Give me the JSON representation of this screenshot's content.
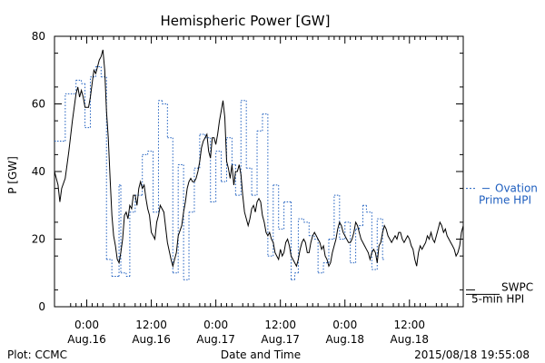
{
  "chart_data": {
    "type": "line",
    "title": "Hemispheric Power [GW]",
    "ylabel": "P [GW]",
    "xlabel": "Date and Time",
    "ylim": [
      0,
      80
    ],
    "xlim": [
      -6,
      222
    ],
    "y_ticks": [
      0,
      20,
      40,
      60,
      80
    ],
    "x_ticks": [
      {
        "t": 12,
        "time": "0:00",
        "date": "Aug.16"
      },
      {
        "t": 48,
        "time": "12:00",
        "date": "Aug.16"
      },
      {
        "t": 84,
        "time": "0:00",
        "date": "Aug.17"
      },
      {
        "t": 120,
        "time": "12:00",
        "date": "Aug.17"
      },
      {
        "t": 156,
        "time": "0:00",
        "date": "Aug.18"
      },
      {
        "t": 192,
        "time": "12:00",
        "date": "Aug.18"
      }
    ],
    "series": [
      {
        "name": "Ovation Prime HPI",
        "color": "#1f5fbf",
        "style": "dotted-step",
        "points": [
          [
            -6,
            49
          ],
          [
            0,
            63
          ],
          [
            6,
            67
          ],
          [
            9,
            66
          ],
          [
            11,
            53
          ],
          [
            14,
            68
          ],
          [
            17,
            71
          ],
          [
            20,
            68
          ],
          [
            23,
            14
          ],
          [
            26,
            9
          ],
          [
            30,
            36
          ],
          [
            31,
            10
          ],
          [
            34,
            9
          ],
          [
            36,
            28
          ],
          [
            39,
            33
          ],
          [
            43,
            45
          ],
          [
            46,
            46
          ],
          [
            49,
            28
          ],
          [
            52,
            61
          ],
          [
            54,
            60
          ],
          [
            57,
            50
          ],
          [
            60,
            10
          ],
          [
            63,
            42
          ],
          [
            66,
            8
          ],
          [
            69,
            28
          ],
          [
            72,
            41
          ],
          [
            75,
            51
          ],
          [
            78,
            50
          ],
          [
            81,
            31
          ],
          [
            84,
            46
          ],
          [
            87,
            37
          ],
          [
            90,
            50
          ],
          [
            93,
            42
          ],
          [
            95,
            33
          ],
          [
            98,
            61
          ],
          [
            101,
            41
          ],
          [
            104,
            33
          ],
          [
            107,
            52
          ],
          [
            110,
            57
          ],
          [
            113,
            15
          ],
          [
            116,
            36
          ],
          [
            119,
            23
          ],
          [
            122,
            31
          ],
          [
            126,
            8
          ],
          [
            128,
            10
          ],
          [
            130,
            26
          ],
          [
            133,
            25
          ],
          [
            136,
            21
          ],
          [
            139,
            20
          ],
          [
            141,
            10
          ],
          [
            144,
            13
          ],
          [
            147,
            20
          ],
          [
            150,
            33
          ],
          [
            153,
            20
          ],
          [
            156,
            25
          ],
          [
            159,
            13
          ],
          [
            162,
            23
          ],
          [
            164,
            24
          ],
          [
            166,
            30
          ],
          [
            168,
            28
          ],
          [
            171,
            11
          ],
          [
            174,
            26
          ],
          [
            177,
            14
          ]
        ],
        "x_end": 178
      },
      {
        "name": "SWPC 5-min HPI",
        "color": "#000000",
        "style": "line",
        "points": [
          [
            -6,
            40
          ],
          [
            -4,
            36
          ],
          [
            -3,
            31
          ],
          [
            -2,
            35
          ],
          [
            0,
            38
          ],
          [
            2,
            46
          ],
          [
            4,
            55
          ],
          [
            6,
            63
          ],
          [
            7,
            65
          ],
          [
            8,
            62
          ],
          [
            9,
            64
          ],
          [
            10,
            62
          ],
          [
            11,
            59
          ],
          [
            13,
            59
          ],
          [
            14,
            62
          ],
          [
            15,
            66
          ],
          [
            16,
            70
          ],
          [
            17,
            69
          ],
          [
            18,
            71
          ],
          [
            19,
            73
          ],
          [
            20,
            74
          ],
          [
            21,
            76
          ],
          [
            22,
            70
          ],
          [
            23,
            58
          ],
          [
            24,
            50
          ],
          [
            25,
            38
          ],
          [
            26,
            27
          ],
          [
            27,
            21
          ],
          [
            28,
            18
          ],
          [
            29,
            14
          ],
          [
            30,
            13
          ],
          [
            31,
            16
          ],
          [
            32,
            20
          ],
          [
            33,
            27
          ],
          [
            34,
            28
          ],
          [
            35,
            26
          ],
          [
            36,
            30
          ],
          [
            37,
            29
          ],
          [
            38,
            33
          ],
          [
            39,
            33
          ],
          [
            40,
            30
          ],
          [
            41,
            35
          ],
          [
            42,
            37
          ],
          [
            43,
            35
          ],
          [
            44,
            36
          ],
          [
            45,
            32
          ],
          [
            46,
            29
          ],
          [
            47,
            27
          ],
          [
            48,
            22
          ],
          [
            49,
            21
          ],
          [
            50,
            20
          ],
          [
            51,
            25
          ],
          [
            52,
            27
          ],
          [
            53,
            30
          ],
          [
            55,
            28
          ],
          [
            57,
            19
          ],
          [
            59,
            14
          ],
          [
            60,
            12
          ],
          [
            61,
            14
          ],
          [
            62,
            16
          ],
          [
            63,
            21
          ],
          [
            65,
            24
          ],
          [
            66,
            28
          ],
          [
            67,
            31
          ],
          [
            68,
            35
          ],
          [
            69,
            37
          ],
          [
            70,
            38
          ],
          [
            71,
            37
          ],
          [
            72,
            37
          ],
          [
            73,
            38
          ],
          [
            74,
            40
          ],
          [
            75,
            43
          ],
          [
            76,
            47
          ],
          [
            77,
            49
          ],
          [
            78,
            50
          ],
          [
            79,
            51
          ],
          [
            80,
            46
          ],
          [
            81,
            44
          ],
          [
            82,
            50
          ],
          [
            83,
            50
          ],
          [
            84,
            48
          ],
          [
            85,
            51
          ],
          [
            86,
            55
          ],
          [
            87,
            58
          ],
          [
            88,
            61
          ],
          [
            89,
            56
          ],
          [
            90,
            43
          ],
          [
            91,
            41
          ],
          [
            92,
            38
          ],
          [
            93,
            42
          ],
          [
            94,
            36
          ],
          [
            95,
            40
          ],
          [
            96,
            40
          ],
          [
            97,
            42
          ],
          [
            98,
            39
          ],
          [
            99,
            33
          ],
          [
            100,
            28
          ],
          [
            101,
            26
          ],
          [
            102,
            24
          ],
          [
            103,
            26
          ],
          [
            104,
            29
          ],
          [
            105,
            30
          ],
          [
            106,
            28
          ],
          [
            107,
            31
          ],
          [
            108,
            32
          ],
          [
            109,
            31
          ],
          [
            110,
            27
          ],
          [
            111,
            25
          ],
          [
            112,
            22
          ],
          [
            113,
            21
          ],
          [
            114,
            22
          ],
          [
            115,
            20
          ],
          [
            116,
            19
          ],
          [
            117,
            16
          ],
          [
            118,
            15
          ],
          [
            119,
            14
          ],
          [
            120,
            17
          ],
          [
            121,
            15
          ],
          [
            122,
            16
          ],
          [
            123,
            19
          ],
          [
            124,
            20
          ],
          [
            125,
            18
          ],
          [
            126,
            15
          ],
          [
            127,
            14
          ],
          [
            128,
            13
          ],
          [
            129,
            12
          ],
          [
            130,
            14
          ],
          [
            131,
            17
          ],
          [
            132,
            19
          ],
          [
            133,
            20
          ],
          [
            134,
            19
          ],
          [
            135,
            16
          ],
          [
            136,
            16
          ],
          [
            137,
            19
          ],
          [
            138,
            21
          ],
          [
            139,
            22
          ],
          [
            140,
            21
          ],
          [
            141,
            20
          ],
          [
            142,
            19
          ],
          [
            143,
            17
          ],
          [
            144,
            18
          ],
          [
            145,
            15
          ],
          [
            146,
            14
          ],
          [
            147,
            12
          ],
          [
            148,
            13
          ],
          [
            149,
            16
          ],
          [
            150,
            18
          ],
          [
            151,
            20
          ],
          [
            152,
            23
          ],
          [
            153,
            25
          ],
          [
            154,
            24
          ],
          [
            155,
            22
          ],
          [
            156,
            21
          ],
          [
            157,
            20
          ],
          [
            158,
            19
          ],
          [
            159,
            19
          ],
          [
            160,
            20
          ],
          [
            161,
            22
          ],
          [
            162,
            25
          ],
          [
            163,
            24
          ],
          [
            164,
            22
          ],
          [
            165,
            20
          ],
          [
            166,
            19
          ],
          [
            167,
            18
          ],
          [
            168,
            17
          ],
          [
            169,
            16
          ],
          [
            170,
            14
          ],
          [
            171,
            16
          ],
          [
            172,
            17
          ],
          [
            173,
            16
          ],
          [
            174,
            13
          ],
          [
            175,
            18
          ],
          [
            176,
            19
          ],
          [
            177,
            22
          ],
          [
            178,
            24
          ],
          [
            179,
            23
          ],
          [
            180,
            21
          ],
          [
            181,
            20
          ],
          [
            182,
            19
          ],
          [
            183,
            20
          ],
          [
            184,
            21
          ],
          [
            185,
            20
          ],
          [
            186,
            22
          ],
          [
            187,
            22
          ],
          [
            188,
            20
          ],
          [
            189,
            19
          ],
          [
            190,
            20
          ],
          [
            191,
            21
          ],
          [
            192,
            20
          ],
          [
            193,
            18
          ],
          [
            194,
            17
          ],
          [
            195,
            14
          ],
          [
            196,
            12
          ],
          [
            197,
            16
          ],
          [
            198,
            18
          ],
          [
            199,
            17
          ],
          [
            200,
            18
          ],
          [
            201,
            19
          ],
          [
            202,
            21
          ],
          [
            203,
            20
          ],
          [
            204,
            22
          ],
          [
            205,
            20
          ],
          [
            206,
            19
          ],
          [
            207,
            21
          ],
          [
            208,
            23
          ],
          [
            209,
            25
          ],
          [
            210,
            24
          ],
          [
            211,
            22
          ],
          [
            212,
            23
          ],
          [
            213,
            21
          ],
          [
            214,
            20
          ],
          [
            215,
            19
          ],
          [
            216,
            18
          ],
          [
            217,
            17
          ],
          [
            218,
            15
          ],
          [
            219,
            16
          ],
          [
            220,
            18
          ],
          [
            221,
            22
          ],
          [
            222,
            24
          ]
        ]
      }
    ],
    "legend": [
      {
        "lines": [
          "Ovation",
          "Prime HPI"
        ],
        "value": 35,
        "color": "#1f5fbf",
        "dash": "dotted"
      },
      {
        "lines": [
          "SWPC",
          "5-min HPI"
        ],
        "value": 5,
        "color": "#000000",
        "dash": "solid"
      }
    ],
    "footer_left": "Plot: CCMC",
    "timestamp": "2015/08/18 19:55:08"
  }
}
